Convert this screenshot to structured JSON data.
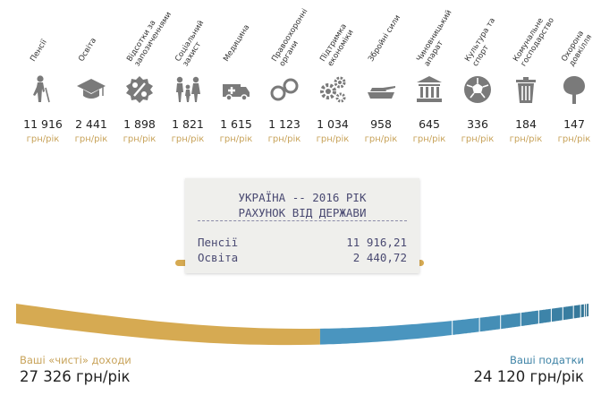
{
  "categories": [
    {
      "label": "Пенсії",
      "value": "11 916",
      "unit": "грн/рік",
      "icon": "elderly-person-icon"
    },
    {
      "label": "Освіта",
      "value": "2 441",
      "unit": "грн/рік",
      "icon": "graduation-cap-icon"
    },
    {
      "label": "Відсотки за\nзапозиченнями",
      "value": "1 898",
      "unit": "грн/рік",
      "icon": "percent-badge-icon"
    },
    {
      "label": "Соціальний\nзахист",
      "value": "1 821",
      "unit": "грн/рік",
      "icon": "family-icon"
    },
    {
      "label": "Медицина",
      "value": "1 615",
      "unit": "грн/рік",
      "icon": "ambulance-icon"
    },
    {
      "label": "Правоохоронні\nоргани",
      "value": "1 123",
      "unit": "грн/рік",
      "icon": "handcuffs-icon"
    },
    {
      "label": "Підтримка\nекономіки",
      "value": "1 034",
      "unit": "грн/рік",
      "icon": "gears-icon"
    },
    {
      "label": "Збройні сили",
      "value": "958",
      "unit": "грн/рік",
      "icon": "tank-icon"
    },
    {
      "label": "Чиновницький\nапарат",
      "value": "645",
      "unit": "грн/рік",
      "icon": "government-building-icon"
    },
    {
      "label": "Культура та\nспорт",
      "value": "336",
      "unit": "грн/рік",
      "icon": "soccer-ball-icon"
    },
    {
      "label": "Комунальне\nгосподарство",
      "value": "184",
      "unit": "грн/рік",
      "icon": "trash-bin-icon"
    },
    {
      "label": "Охорона\nдовкілля",
      "value": "147",
      "unit": "грн/рік",
      "icon": "tree-icon"
    }
  ],
  "receipt": {
    "title": "УКРАЇНА -- 2016 РІК",
    "subtitle": "РАХУНОК ВІД ДЕРЖАВИ",
    "rows": [
      {
        "label": "Пенсії",
        "value": "11 916,21"
      },
      {
        "label": "Освіта",
        "value": "2 440,72"
      }
    ]
  },
  "income": {
    "label": "Ваші «чисті» доходи",
    "value": "27 326 грн/рік"
  },
  "taxes": {
    "label": "Ваші податки",
    "value": "24 120 грн/рік"
  },
  "split": {
    "income": 27326,
    "taxes": 24120,
    "tax_segments": [
      11916,
      2441,
      1898,
      1821,
      1615,
      1123,
      1034,
      958,
      645,
      336,
      184,
      147
    ]
  },
  "colors": {
    "icon": "#7a7a7a",
    "accent": "#d6aa52",
    "unit": "#c8a35a",
    "tax": "#3e83a6",
    "tax_dark": "#2e6f8e"
  }
}
